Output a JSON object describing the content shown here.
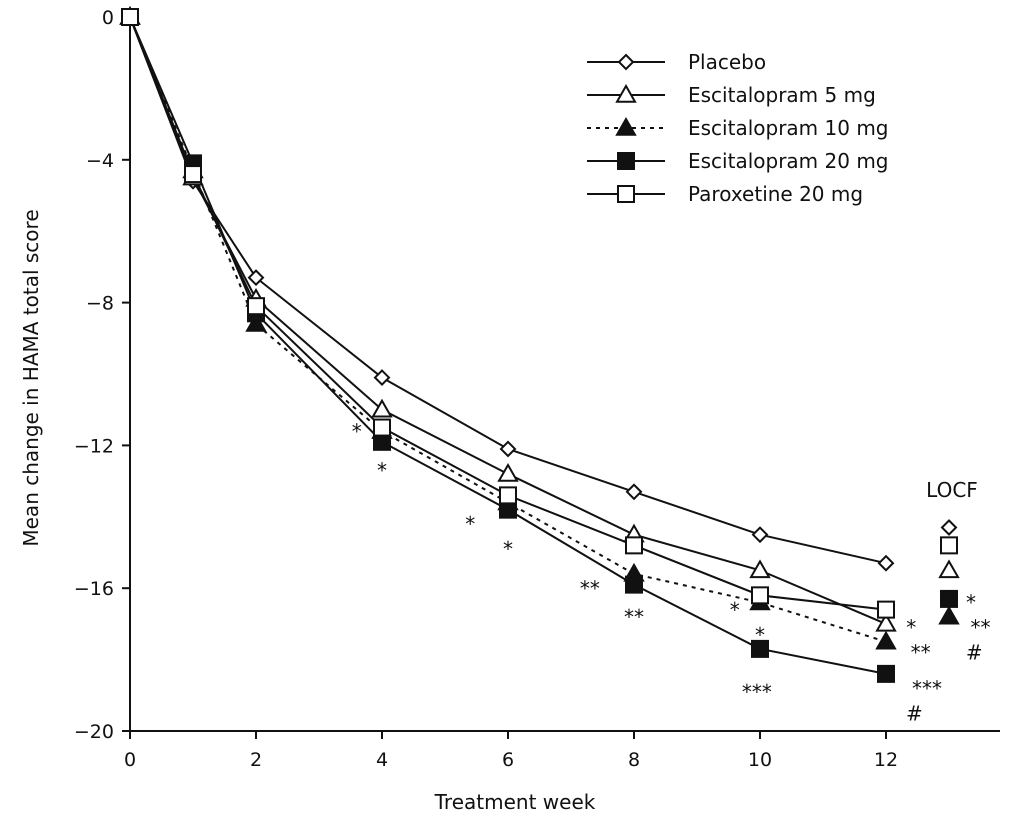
{
  "chart_data": {
    "type": "line",
    "xlabel": "Treatment week",
    "ylabel": "Mean change in HAMA total score",
    "xlim": [
      0,
      13.8
    ],
    "ylim": [
      -20,
      0
    ],
    "xticks": [
      0,
      2,
      4,
      6,
      8,
      10,
      12
    ],
    "yticks": [
      0,
      -4,
      -8,
      -12,
      -16,
      -20
    ],
    "xtick_labels": [
      "0",
      "2",
      "4",
      "6",
      "8",
      "10",
      "12"
    ],
    "ytick_labels": [
      "0",
      "−4",
      "−8",
      "−12",
      "−16",
      "−20"
    ],
    "x": [
      0,
      1,
      2,
      4,
      6,
      8,
      10,
      12
    ],
    "legend_position": "top-right",
    "series": [
      {
        "key": "placebo",
        "name": "Placebo",
        "marker": "diamond",
        "fill": "open",
        "dash": "solid",
        "values": [
          0,
          -4.6,
          -7.3,
          -10.1,
          -12.1,
          -13.3,
          -14.5,
          -15.3
        ],
        "locf": -14.3
      },
      {
        "key": "esc5",
        "name": "Escitalopram 5 mg",
        "marker": "triangle",
        "fill": "open",
        "dash": "solid",
        "values": [
          0,
          -4.5,
          -7.9,
          -11.0,
          -12.8,
          -14.5,
          -15.5,
          -17.0
        ],
        "locf": -15.5
      },
      {
        "key": "esc10",
        "name": "Escitalopram 10 mg",
        "marker": "triangle",
        "fill": "filled",
        "dash": "dashed",
        "values": [
          0,
          -4.3,
          -8.6,
          -11.6,
          -13.6,
          -15.6,
          -16.4,
          -17.5
        ],
        "locf": -16.8
      },
      {
        "key": "esc20",
        "name": "Escitalopram 20 mg",
        "marker": "square",
        "fill": "filled",
        "dash": "solid",
        "values": [
          0,
          -4.1,
          -8.3,
          -11.9,
          -13.8,
          -15.9,
          -17.7,
          -18.4
        ],
        "locf": -16.3
      },
      {
        "key": "parox20",
        "name": "Paroxetine 20 mg",
        "marker": "square",
        "fill": "open",
        "dash": "solid",
        "values": [
          0,
          -4.4,
          -8.1,
          -11.5,
          -13.4,
          -14.8,
          -16.2,
          -16.6
        ],
        "locf": -14.8
      }
    ],
    "locf": {
      "label": "LOCF",
      "x": 13.0
    },
    "significance": [
      {
        "text": "*",
        "x": 3.6,
        "y": -11.8
      },
      {
        "text": "*",
        "x": 4.0,
        "y": -12.9
      },
      {
        "text": "*",
        "x": 5.4,
        "y": -14.4
      },
      {
        "text": "*",
        "x": 6.0,
        "y": -15.1
      },
      {
        "text": "**",
        "x": 7.3,
        "y": -16.2
      },
      {
        "text": "**",
        "x": 8.0,
        "y": -17.0
      },
      {
        "text": "*",
        "x": 9.6,
        "y": -16.8
      },
      {
        "text": "*",
        "x": 10.0,
        "y": -17.5
      },
      {
        "text": "***",
        "x": 9.95,
        "y": -19.1
      },
      {
        "text": "*",
        "x": 12.4,
        "y": -17.3
      },
      {
        "text": "**",
        "x": 12.55,
        "y": -18.0
      },
      {
        "text": "***",
        "x": 12.65,
        "y": -19.0
      },
      {
        "text": "#",
        "x": 12.45,
        "y": -19.7
      },
      {
        "text": "*",
        "x": 13.35,
        "y": -16.6
      },
      {
        "text": "**",
        "x": 13.5,
        "y": -17.3
      },
      {
        "text": "#",
        "x": 13.4,
        "y": -18.0
      }
    ]
  }
}
